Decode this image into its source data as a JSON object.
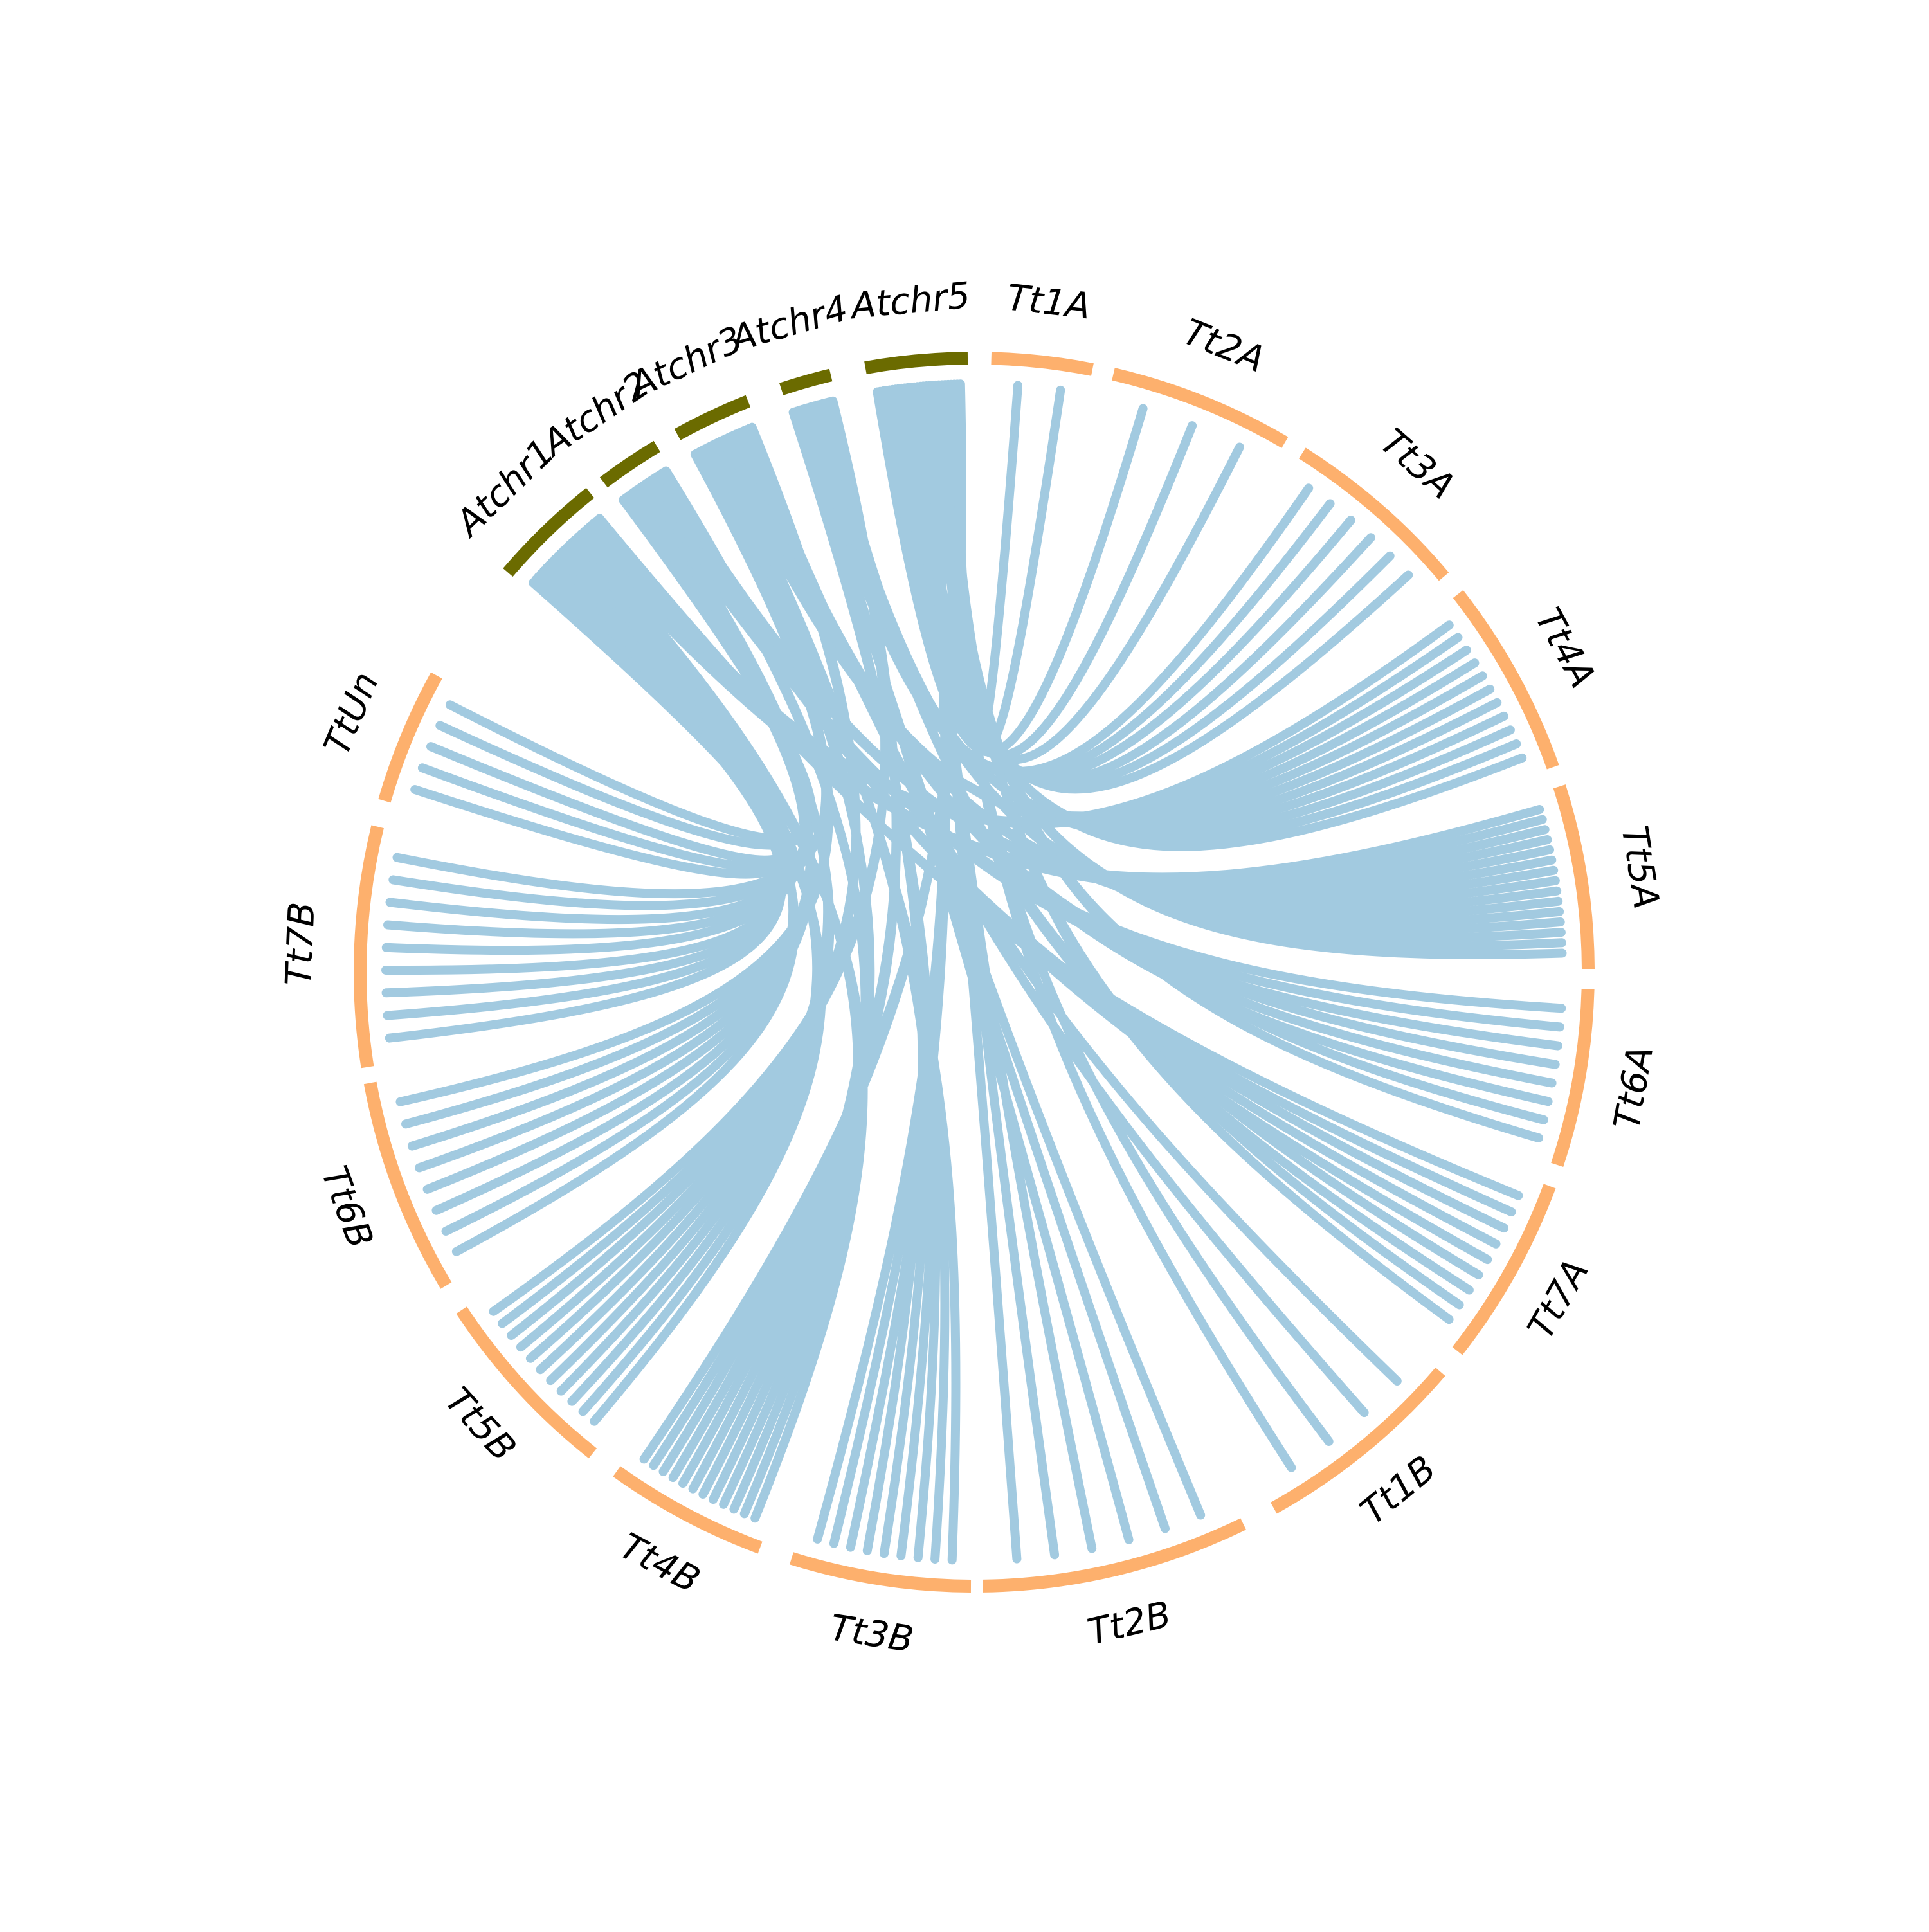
{
  "colors": {
    "background": "#ffffff",
    "reference_chromosome": "#6b6b00",
    "query_chromosome": "#fdb06d",
    "link": "#a2cae0"
  },
  "chart_data": {
    "type": "chord",
    "segments": [
      {
        "label": "Atchr1",
        "group": "reference"
      },
      {
        "label": "Atchr2",
        "group": "reference"
      },
      {
        "label": "Atchr3",
        "group": "reference"
      },
      {
        "label": "Atchr4",
        "group": "reference"
      },
      {
        "label": "Atchr5",
        "group": "reference"
      },
      {
        "label": "Tt1A",
        "group": "query"
      },
      {
        "label": "Tt2A",
        "group": "query"
      },
      {
        "label": "Tt3A",
        "group": "query"
      },
      {
        "label": "Tt4A",
        "group": "query"
      },
      {
        "label": "Tt5A",
        "group": "query"
      },
      {
        "label": "Tt6A",
        "group": "query"
      },
      {
        "label": "Tt7A",
        "group": "query"
      },
      {
        "label": "Tt1B",
        "group": "query"
      },
      {
        "label": "Tt2B",
        "group": "query"
      },
      {
        "label": "Tt3B",
        "group": "query"
      },
      {
        "label": "Tt4B",
        "group": "query"
      },
      {
        "label": "Tt5B",
        "group": "query"
      },
      {
        "label": "Tt6B",
        "group": "query"
      },
      {
        "label": "Tt7B",
        "group": "query"
      },
      {
        "label": "TtUn",
        "group": "query"
      }
    ],
    "links": [
      {
        "from": "Atchr1",
        "to": "TtUn",
        "count": 3
      },
      {
        "from": "Atchr1",
        "to": "Tt7B",
        "count": 4
      },
      {
        "from": "Atchr1",
        "to": "Tt6B",
        "count": 3
      },
      {
        "from": "Atchr1",
        "to": "Tt5B",
        "count": 4
      },
      {
        "from": "Atchr1",
        "to": "Tt4B",
        "count": 3
      },
      {
        "from": "Atchr1",
        "to": "Tt5A",
        "count": 3
      },
      {
        "from": "Atchr1",
        "to": "Tt4A",
        "count": 2
      },
      {
        "from": "Atchr1",
        "to": "Tt7A",
        "count": 2
      },
      {
        "from": "Atchr2",
        "to": "TtUn",
        "count": 2
      },
      {
        "from": "Atchr2",
        "to": "Tt7B",
        "count": 3
      },
      {
        "from": "Atchr2",
        "to": "Tt6B",
        "count": 3
      },
      {
        "from": "Atchr2",
        "to": "Tt5B",
        "count": 3
      },
      {
        "from": "Atchr2",
        "to": "Tt6A",
        "count": 3
      },
      {
        "from": "Atchr2",
        "to": "Tt7A",
        "count": 3
      },
      {
        "from": "Atchr2",
        "to": "Tt5A",
        "count": 3
      },
      {
        "from": "Atchr2",
        "to": "Tt4B",
        "count": 2
      },
      {
        "from": "Atchr3",
        "to": "Tt7B",
        "count": 2
      },
      {
        "from": "Atchr3",
        "to": "Tt6B",
        "count": 2
      },
      {
        "from": "Atchr3",
        "to": "Tt4B",
        "count": 3
      },
      {
        "from": "Atchr3",
        "to": "Tt3B",
        "count": 3
      },
      {
        "from": "Atchr3",
        "to": "Tt4A",
        "count": 3
      },
      {
        "from": "Atchr3",
        "to": "Tt5A",
        "count": 3
      },
      {
        "from": "Atchr3",
        "to": "Tt6A",
        "count": 3
      },
      {
        "from": "Atchr3",
        "to": "Tt1B",
        "count": 2
      },
      {
        "from": "Atchr3",
        "to": "Tt5B",
        "count": 2
      },
      {
        "from": "Atchr4",
        "to": "Tt3B",
        "count": 3
      },
      {
        "from": "Atchr4",
        "to": "Tt2B",
        "count": 3
      },
      {
        "from": "Atchr4",
        "to": "Tt3A",
        "count": 3
      },
      {
        "from": "Atchr4",
        "to": "Tt4A",
        "count": 3
      },
      {
        "from": "Atchr4",
        "to": "Tt5A",
        "count": 3
      },
      {
        "from": "Atchr4",
        "to": "Tt7A",
        "count": 2
      },
      {
        "from": "Atchr4",
        "to": "Tt4B",
        "count": 2
      },
      {
        "from": "Atchr4",
        "to": "Tt5B",
        "count": 2
      },
      {
        "from": "Atchr5",
        "to": "Tt2A",
        "count": 3
      },
      {
        "from": "Atchr5",
        "to": "Tt3A",
        "count": 3
      },
      {
        "from": "Atchr5",
        "to": "Tt4A",
        "count": 3
      },
      {
        "from": "Atchr5",
        "to": "Tt5A",
        "count": 3
      },
      {
        "from": "Atchr5",
        "to": "Tt2B",
        "count": 3
      },
      {
        "from": "Atchr5",
        "to": "Tt3B",
        "count": 3
      },
      {
        "from": "Atchr5",
        "to": "Tt1B",
        "count": 2
      },
      {
        "from": "Atchr5",
        "to": "Tt6A",
        "count": 2
      },
      {
        "from": "Atchr5",
        "to": "Tt7A",
        "count": 2
      },
      {
        "from": "Atchr5",
        "to": "Tt1A",
        "count": 2
      },
      {
        "from": "Atchr5",
        "to": "Tt4B",
        "count": 2
      }
    ]
  }
}
